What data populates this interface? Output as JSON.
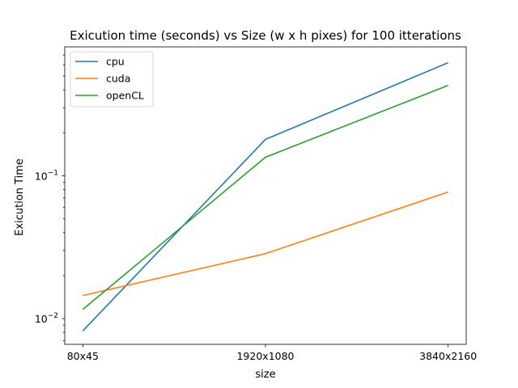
{
  "chart_data": {
    "type": "line",
    "title": "Exicution time (seconds) vs Size (w x h pixes) for 100 itterations",
    "xlabel": "size",
    "ylabel": "Exicution Time",
    "categories": [
      "80x45",
      "1920x1080",
      "3840x2160"
    ],
    "y_scale": "log",
    "ylim": [
      0.0066,
      0.8
    ],
    "y_major_ticks": [
      {
        "value": 0.01,
        "base": "10",
        "exp": "−2"
      },
      {
        "value": 0.1,
        "base": "10",
        "exp": "−1"
      }
    ],
    "y_minor_ticks": [
      0.007,
      0.008,
      0.009,
      0.02,
      0.03,
      0.04,
      0.05,
      0.06,
      0.07,
      0.08,
      0.09,
      0.2,
      0.3,
      0.4,
      0.5,
      0.6,
      0.7
    ],
    "grid": false,
    "legend_position": "upper-left",
    "series": [
      {
        "name": "cpu",
        "color": "#1f77b4",
        "values": [
          0.0082,
          0.18,
          0.62
        ]
      },
      {
        "name": "cuda",
        "color": "#ff7f0e",
        "values": [
          0.0145,
          0.0285,
          0.077
        ]
      },
      {
        "name": "openCL",
        "color": "#2ca02c",
        "values": [
          0.0116,
          0.135,
          0.43
        ]
      }
    ]
  }
}
